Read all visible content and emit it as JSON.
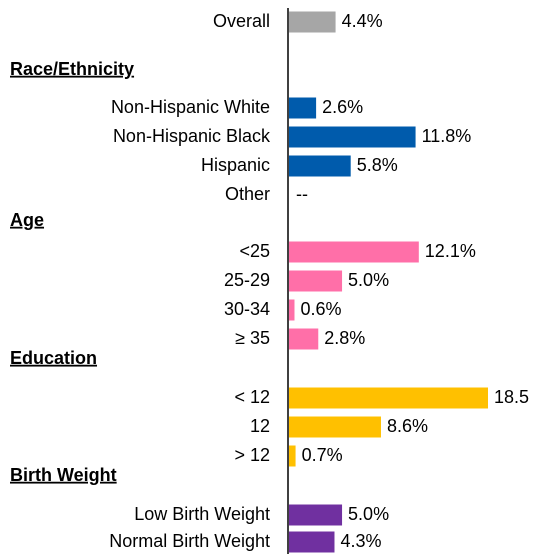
{
  "chart_data": {
    "type": "bar",
    "orientation": "horizontal",
    "groups": [
      {
        "categories": [
          "Overall"
        ],
        "values": [
          4.4
        ],
        "value_labels": [
          "4.4%"
        ],
        "color": "#a6a6a6"
      },
      {
        "name": "Race/Ethnicity",
        "categories": [
          "Non-Hispanic White",
          "Non-Hispanic Black",
          "Hispanic",
          "Other"
        ],
        "values": [
          2.6,
          11.8,
          5.8,
          null
        ],
        "value_labels": [
          "2.6%",
          "11.8%",
          "5.8%",
          "--"
        ],
        "color": "#005bac"
      },
      {
        "name": "Age",
        "categories": [
          "<25",
          "25-29",
          "30-34",
          "≥ 35"
        ],
        "values": [
          12.1,
          5.0,
          0.6,
          2.8
        ],
        "value_labels": [
          "12.1%",
          "5.0%",
          "0.6%",
          "2.8%"
        ],
        "color": "#ff6fa8"
      },
      {
        "name": "Education",
        "categories": [
          "< 12",
          "12",
          "> 12"
        ],
        "values": [
          18.5,
          8.6,
          0.7
        ],
        "value_labels": [
          "18.5",
          "8.6%",
          "0.7%"
        ],
        "color": "#ffc000"
      },
      {
        "name": "Birth Weight",
        "categories": [
          "Low Birth Weight",
          "Normal Birth Weight"
        ],
        "values": [
          5.0,
          4.3
        ],
        "value_labels": [
          "5.0%",
          "4.3%"
        ],
        "color": "#7030a0"
      }
    ]
  }
}
